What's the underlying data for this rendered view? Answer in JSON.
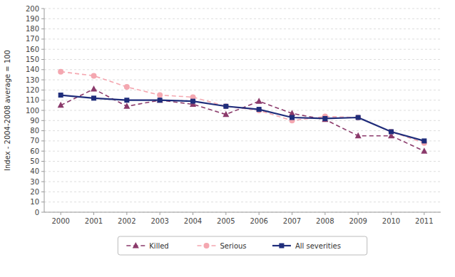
{
  "chart_data": {
    "type": "line",
    "y_label": "Index - 2004-2008 average = 100",
    "x": [
      2000,
      2001,
      2002,
      2003,
      2004,
      2005,
      2006,
      2007,
      2008,
      2009,
      2010,
      2011
    ],
    "xlim": [
      1999.5,
      2011.5
    ],
    "xticks": [
      2000,
      2001,
      2002,
      2003,
      2004,
      2005,
      2006,
      2007,
      2008,
      2009,
      2010,
      2011
    ],
    "ylim": [
      0,
      200
    ],
    "yticks": [
      0,
      10,
      20,
      30,
      40,
      50,
      60,
      70,
      80,
      90,
      100,
      110,
      120,
      130,
      140,
      150,
      160,
      170,
      180,
      190,
      200
    ],
    "grid": true,
    "legend": "bottom",
    "series": [
      {
        "name": "Killed",
        "color": "#8B3A6B",
        "marker": "triangle",
        "line_style": "dashed",
        "values": [
          105,
          121,
          104,
          110,
          106,
          96,
          109,
          97,
          91,
          75,
          75,
          60
        ]
      },
      {
        "name": "Serious",
        "color": "#F4A7B0",
        "marker": "circle",
        "line_style": "dashed",
        "values": [
          138,
          134,
          123,
          115,
          113,
          104,
          100,
          90,
          94,
          93,
          79,
          68
        ]
      },
      {
        "name": "All severities",
        "color": "#1F2D7B",
        "marker": "square",
        "line_style": "solid",
        "values": [
          115,
          112,
          110,
          110,
          109,
          104,
          101,
          93,
          92,
          93,
          79,
          70
        ]
      }
    ]
  }
}
